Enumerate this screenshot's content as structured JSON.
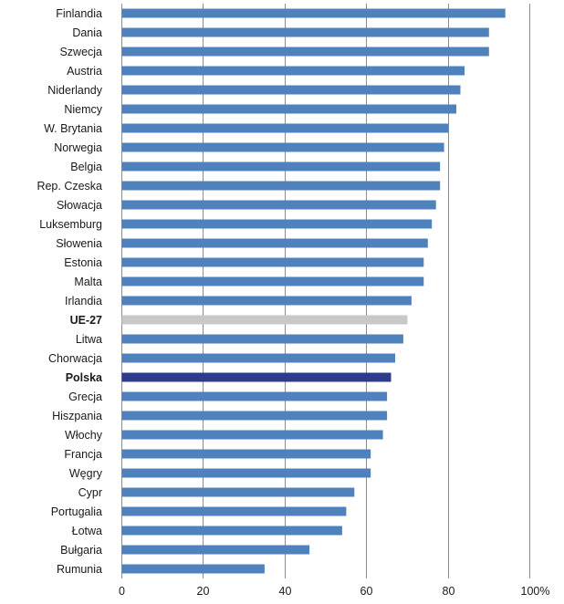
{
  "chart_data": {
    "type": "bar",
    "orientation": "horizontal",
    "categories": [
      "Finlandia",
      "Dania",
      "Szwecja",
      "Austria",
      "Niderlandy",
      "Niemcy",
      "W. Brytania",
      "Norwegia",
      "Belgia",
      "Rep. Czeska",
      "Słowacja",
      "Luksemburg",
      "Słowenia",
      "Estonia",
      "Malta",
      "Irlandia",
      "UE-27",
      "Litwa",
      "Chorwacja",
      "Polska",
      "Grecja",
      "Hiszpania",
      "Włochy",
      "Francja",
      "Węgry",
      "Cypr",
      "Portugalia",
      "Łotwa",
      "Bułgaria",
      "Rumunia"
    ],
    "values": [
      94,
      90,
      90,
      84,
      83,
      82,
      80,
      79,
      78,
      78,
      77,
      76,
      75,
      74,
      74,
      71,
      70,
      69,
      67,
      66,
      65,
      65,
      64,
      61,
      61,
      57,
      55,
      54,
      46,
      35
    ],
    "bold_categories": [
      "UE-27",
      "Polska"
    ],
    "xlim": [
      0,
      100
    ],
    "tick_labels": [
      "0",
      "20",
      "40",
      "60",
      "80",
      "100%"
    ],
    "colors": {
      "default": "#4f81bd",
      "UE-27": "#c8c8c8",
      "Polska": "#2e3a8c"
    },
    "title": "",
    "xlabel": "",
    "ylabel": "",
    "grid": true,
    "legend": false
  }
}
